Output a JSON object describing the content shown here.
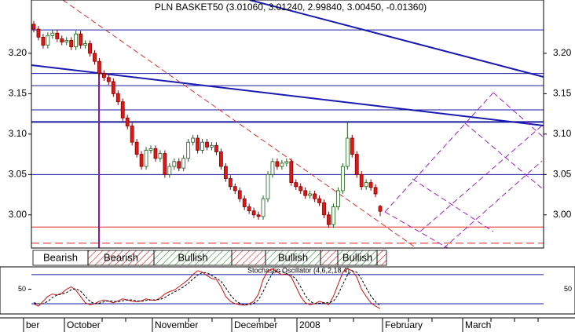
{
  "chart_data": [
    {
      "type": "candlestick",
      "title": "PLN BASKET50 (3.01060, 3.01240, 2.99840, 3.00450, -0.01360)",
      "ylim": [
        2.959,
        3.266
      ],
      "yticks": [
        {
          "value": 3.0,
          "label": "3.00"
        },
        {
          "value": 3.05,
          "label": "3.05"
        },
        {
          "value": 3.1,
          "label": "3.10"
        },
        {
          "value": 3.15,
          "label": "3.15"
        },
        {
          "value": 3.2,
          "label": "3.20"
        }
      ],
      "up_color": "#ffffff",
      "down_color": "#e01818",
      "levels": [
        {
          "value": 3.229,
          "color": "#1a1aa0"
        },
        {
          "value": 3.175,
          "color": "#1a1aa0"
        },
        {
          "value": 3.16,
          "color": "#1a1aa0"
        },
        {
          "value": 3.13,
          "color": "#1a1aa0"
        },
        {
          "value": 3.115,
          "color": "#1a1aa0",
          "style": "thick"
        },
        {
          "value": 3.05,
          "color": "#1a1aa0"
        },
        {
          "value": 2.985,
          "color": "#e02020"
        },
        {
          "value": 2.965,
          "color": "#e02020",
          "style": "dashed"
        }
      ],
      "signals": [
        "Bearish",
        "Bearish",
        "Bullish",
        "Bullish",
        "Bullish"
      ],
      "x_labels": [
        "ber",
        "October",
        "November",
        "December",
        "2008",
        "February",
        "March"
      ],
      "candles": [
        [
          3.236,
          3.24,
          3.226,
          3.23
        ],
        [
          3.23,
          3.234,
          3.216,
          3.22
        ],
        [
          3.22,
          3.224,
          3.206,
          3.21
        ],
        [
          3.21,
          3.226,
          3.206,
          3.222
        ],
        [
          3.222,
          3.229,
          3.218,
          3.225
        ],
        [
          3.225,
          3.229,
          3.214,
          3.218
        ],
        [
          3.218,
          3.222,
          3.21,
          3.214
        ],
        [
          3.214,
          3.22,
          3.21,
          3.216
        ],
        [
          3.216,
          3.22,
          3.204,
          3.208
        ],
        [
          3.208,
          3.228,
          3.204,
          3.224
        ],
        [
          3.224,
          3.228,
          3.206,
          3.21
        ],
        [
          3.21,
          3.216,
          3.206,
          3.212
        ],
        [
          3.212,
          3.216,
          3.196,
          3.2
        ],
        [
          3.2,
          3.204,
          3.186,
          3.19
        ],
        [
          3.19,
          3.194,
          3.171,
          3.175
        ],
        [
          3.175,
          3.179,
          3.166,
          3.17
        ],
        [
          3.17,
          3.174,
          3.161,
          3.165
        ],
        [
          3.165,
          3.169,
          3.146,
          3.15
        ],
        [
          3.15,
          3.154,
          3.136,
          3.14
        ],
        [
          3.14,
          3.144,
          3.116,
          3.12
        ],
        [
          3.12,
          3.124,
          3.106,
          3.11
        ],
        [
          3.11,
          3.114,
          3.086,
          3.09
        ],
        [
          3.09,
          3.094,
          3.071,
          3.075
        ],
        [
          3.075,
          3.079,
          3.056,
          3.06
        ],
        [
          3.06,
          3.084,
          3.056,
          3.08
        ],
        [
          3.08,
          3.086,
          3.076,
          3.082
        ],
        [
          3.082,
          3.086,
          3.066,
          3.07
        ],
        [
          3.07,
          3.08,
          3.066,
          3.076
        ],
        [
          3.076,
          3.08,
          3.046,
          3.05
        ],
        [
          3.05,
          3.064,
          3.046,
          3.06
        ],
        [
          3.06,
          3.07,
          3.056,
          3.066
        ],
        [
          3.066,
          3.07,
          3.054,
          3.058
        ],
        [
          3.058,
          3.074,
          3.054,
          3.07
        ],
        [
          3.07,
          3.094,
          3.066,
          3.09
        ],
        [
          3.09,
          3.099,
          3.086,
          3.095
        ],
        [
          3.095,
          3.099,
          3.076,
          3.08
        ],
        [
          3.08,
          3.094,
          3.076,
          3.09
        ],
        [
          3.09,
          3.094,
          3.08,
          3.084
        ],
        [
          3.084,
          3.09,
          3.08,
          3.086
        ],
        [
          3.086,
          3.09,
          3.074,
          3.078
        ],
        [
          3.078,
          3.082,
          3.056,
          3.06
        ],
        [
          3.06,
          3.064,
          3.041,
          3.045
        ],
        [
          3.045,
          3.049,
          3.031,
          3.035
        ],
        [
          3.035,
          3.039,
          3.026,
          3.03
        ],
        [
          3.03,
          3.034,
          3.016,
          3.02
        ],
        [
          3.02,
          3.024,
          3.006,
          3.01
        ],
        [
          3.01,
          3.014,
          3.001,
          3.005
        ],
        [
          3.005,
          3.009,
          2.996,
          3.0
        ],
        [
          3.0,
          3.004,
          2.994,
          2.998
        ],
        [
          2.998,
          3.024,
          2.994,
          3.02
        ],
        [
          3.02,
          3.054,
          3.016,
          3.05
        ],
        [
          3.05,
          3.07,
          3.046,
          3.066
        ],
        [
          3.066,
          3.07,
          3.056,
          3.06
        ],
        [
          3.06,
          3.068,
          3.056,
          3.064
        ],
        [
          3.064,
          3.07,
          3.06,
          3.066
        ],
        [
          3.066,
          3.07,
          3.036,
          3.04
        ],
        [
          3.04,
          3.044,
          3.031,
          3.035
        ],
        [
          3.035,
          3.039,
          3.026,
          3.03
        ],
        [
          3.03,
          3.034,
          3.02,
          3.024
        ],
        [
          3.024,
          3.03,
          3.02,
          3.026
        ],
        [
          3.026,
          3.03,
          3.016,
          3.02
        ],
        [
          3.02,
          3.024,
          3.011,
          3.015
        ],
        [
          3.015,
          3.019,
          2.996,
          3.0
        ],
        [
          3.0,
          3.004,
          2.984,
          2.988
        ],
        [
          2.988,
          3.014,
          2.984,
          3.01
        ],
        [
          3.01,
          3.034,
          3.006,
          3.03
        ],
        [
          3.03,
          3.064,
          3.026,
          3.06
        ],
        [
          3.06,
          3.115,
          3.056,
          3.095
        ],
        [
          3.095,
          3.099,
          3.071,
          3.075
        ],
        [
          3.075,
          3.079,
          3.046,
          3.05
        ],
        [
          3.05,
          3.054,
          3.031,
          3.035
        ],
        [
          3.035,
          3.044,
          3.031,
          3.04
        ],
        [
          3.04,
          3.044,
          3.03,
          3.034
        ],
        [
          3.034,
          3.038,
          3.022,
          3.026
        ],
        [
          3.0106,
          3.0124,
          2.9984,
          3.0045
        ]
      ]
    },
    {
      "type": "line",
      "title": "Stochastic Oscillator (4,6,2,18,4)",
      "ylim": [
        -1,
        96
      ],
      "yticks": [
        50
      ],
      "levels": [
        80,
        20
      ],
      "series": [
        {
          "color": "#d01010",
          "style": "solid",
          "values": [
            20,
            15,
            25,
            35,
            40,
            38,
            42,
            50,
            55,
            48,
            35,
            22,
            18,
            20,
            25,
            28,
            25,
            22,
            26,
            30,
            28,
            25,
            24,
            26,
            30,
            28,
            27,
            32,
            40,
            45,
            48,
            55,
            62,
            70,
            80,
            88,
            85,
            78,
            72,
            70,
            55,
            35,
            25,
            20,
            18,
            17,
            20,
            25,
            40,
            70,
            88,
            92,
            85,
            80,
            82,
            75,
            55,
            35,
            22,
            18,
            20,
            25,
            22,
            18,
            35,
            60,
            85,
            92,
            88,
            75,
            50,
            35,
            22,
            15,
            10
          ]
        },
        {
          "color": "#000000",
          "style": "dashed",
          "values": [
            22,
            20,
            20,
            25,
            33,
            38,
            40,
            43,
            49,
            51,
            46,
            35,
            25,
            20,
            21,
            24,
            26,
            25,
            24,
            26,
            28,
            28,
            26,
            25,
            27,
            28,
            28,
            29,
            33,
            39,
            44,
            49,
            55,
            62,
            71,
            79,
            84,
            84,
            78,
            73,
            66,
            53,
            38,
            27,
            21,
            18,
            18,
            21,
            28,
            45,
            66,
            83,
            88,
            86,
            82,
            79,
            71,
            55,
            37,
            25,
            20,
            21,
            22,
            22,
            25,
            39,
            60,
            79,
            88,
            85,
            71,
            53,
            36,
            24,
            16
          ]
        }
      ]
    }
  ]
}
